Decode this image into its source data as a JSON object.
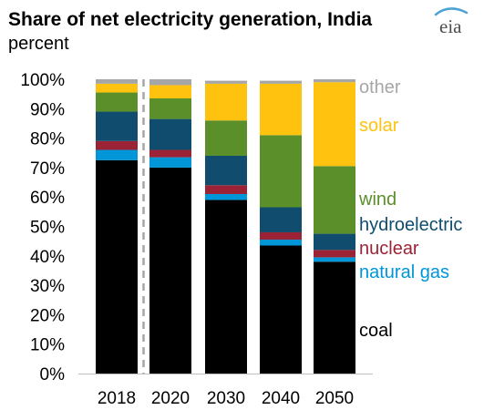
{
  "chart_data": {
    "type": "bar",
    "stacked": true,
    "title": "Share of net electricity generation, India",
    "subtitle": "percent",
    "categories": [
      "2018",
      "2020",
      "2030",
      "2040",
      "2050"
    ],
    "y_ticks": [
      "0%",
      "10%",
      "20%",
      "30%",
      "40%",
      "50%",
      "60%",
      "70%",
      "80%",
      "90%",
      "100%"
    ],
    "ylim": [
      0,
      100
    ],
    "divider_after_category": "2018",
    "legend_placement": "right",
    "series": [
      {
        "name": "coal",
        "color": "#000000",
        "values": [
          72.5,
          70,
          59,
          43.5,
          38
        ]
      },
      {
        "name": "natural gas",
        "color": "#0096d7",
        "values": [
          3.5,
          3.5,
          2,
          2,
          1.5
        ]
      },
      {
        "name": "nuclear",
        "color": "#9b2335",
        "values": [
          3,
          2.5,
          3,
          2.5,
          2.5
        ]
      },
      {
        "name": "hydroelectric",
        "color": "#0f4c6e",
        "values": [
          10,
          10.5,
          10,
          8.5,
          5.5
        ]
      },
      {
        "name": "wind",
        "color": "#5a8f29",
        "values": [
          6.5,
          7,
          12,
          24.5,
          23
        ]
      },
      {
        "name": "solar",
        "color": "#ffc20e",
        "values": [
          3,
          4.5,
          12.5,
          17.5,
          28.5
        ]
      },
      {
        "name": "other",
        "color": "#a6a6a6",
        "values": [
          1.5,
          2,
          1,
          1,
          1
        ]
      }
    ]
  },
  "logo": {
    "text": "eia",
    "color": "#4da3d4"
  }
}
